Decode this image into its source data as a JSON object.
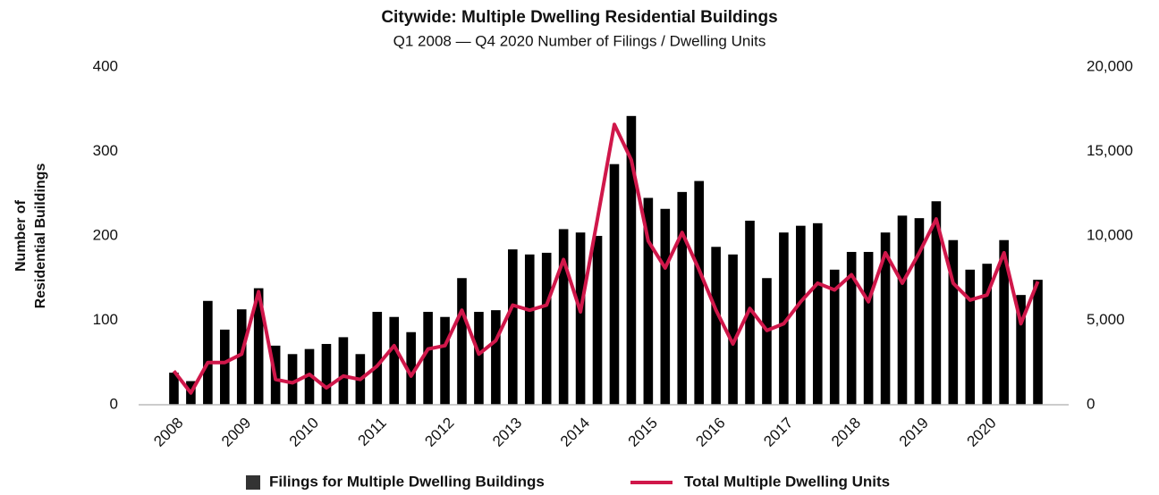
{
  "chart_data": {
    "type": "bar_line",
    "title": "Citywide: Multiple Dwelling Residential Buildings",
    "subtitle": "Q1 2008 — Q4 2020 Number of Filings / Dwelling Units",
    "ylabel": [
      "Number of",
      "Residential  Buildings"
    ],
    "categories": [
      "2008",
      null,
      null,
      null,
      "2009",
      null,
      null,
      null,
      "2010",
      null,
      null,
      null,
      "2011",
      null,
      null,
      null,
      "2012",
      null,
      null,
      null,
      "2013",
      null,
      null,
      null,
      "2014",
      null,
      null,
      null,
      "2015",
      null,
      null,
      null,
      "2016",
      null,
      null,
      null,
      "2017",
      null,
      null,
      null,
      "2018",
      null,
      null,
      null,
      "2019",
      null,
      null,
      null,
      "2020",
      null,
      null,
      null
    ],
    "series": [
      {
        "name": "Filings for Multiple Dwelling Buildings",
        "color": "#000000",
        "kind": "bar",
        "axis": "y",
        "values": [
          38,
          28,
          123,
          89,
          113,
          138,
          70,
          60,
          66,
          72,
          80,
          60,
          110,
          104,
          86,
          110,
          104,
          150,
          110,
          112,
          184,
          178,
          180,
          208,
          204,
          200,
          285,
          342,
          245,
          232,
          252,
          265,
          187,
          178,
          218,
          150,
          204,
          212,
          215,
          160,
          181,
          181,
          204,
          224,
          221,
          241,
          195,
          160,
          167,
          195,
          130,
          148
        ]
      },
      {
        "name": "Total Multiple Dwelling Units",
        "color": "#d0174a",
        "kind": "line",
        "axis": "y2",
        "values": [
          2000,
          700,
          2500,
          2500,
          3000,
          6700,
          1500,
          1300,
          1800,
          1000,
          1700,
          1500,
          2300,
          3500,
          1700,
          3300,
          3500,
          5600,
          3000,
          3800,
          5900,
          5600,
          5900,
          8600,
          5500,
          11000,
          16600,
          14500,
          9700,
          8100,
          10200,
          8000,
          5600,
          3600,
          5700,
          4400,
          4800,
          6100,
          7200,
          6800,
          7700,
          6100,
          9000,
          7200,
          9000,
          11000,
          7200,
          6200,
          6500,
          9000,
          4800,
          7300
        ]
      }
    ],
    "ylim": [
      0,
      400
    ],
    "yticks": [
      0,
      100,
      200,
      300,
      400
    ],
    "y2lim": [
      0,
      20000
    ],
    "y2ticks": [
      0,
      {
        "value": 5000,
        "label": "5,000"
      },
      {
        "value": 10000,
        "label": "10,000"
      },
      {
        "value": 15000,
        "label": "15,000"
      },
      {
        "value": 20000,
        "label": "20,000"
      }
    ],
    "legend": "bottom",
    "grid": false
  }
}
